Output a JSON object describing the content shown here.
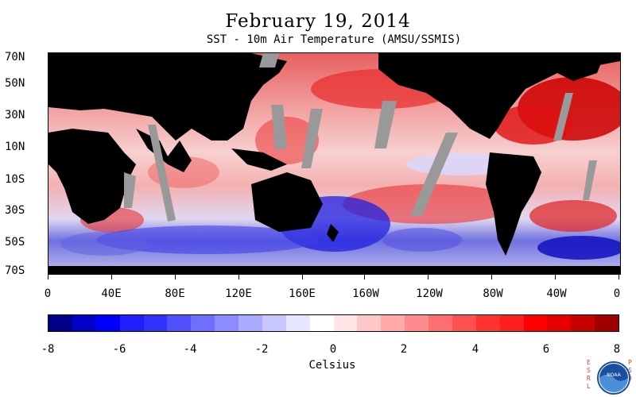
{
  "title": "February 19, 2014",
  "subtitle": "SST - 10m Air Temperature (AMSU/SSMIS)",
  "latitude_labels": [
    "70N",
    "50N",
    "30N",
    "10N",
    "10S",
    "30S",
    "50S",
    "70S"
  ],
  "longitude_labels": [
    "0",
    "40E",
    "80E",
    "120E",
    "160E",
    "160W",
    "120W",
    "80W",
    "40W",
    "0"
  ],
  "colorbar": {
    "labels": [
      "-8",
      "-6",
      "-4",
      "-2",
      "0",
      "2",
      "4",
      "6",
      "8"
    ],
    "title": "Celsius",
    "colors": [
      "#00008b",
      "#0000c8",
      "#0000ff",
      "#1e1eff",
      "#3232ff",
      "#5050ff",
      "#6e6eff",
      "#8c8cff",
      "#aaaaff",
      "#c8c8ff",
      "#e6e6ff",
      "#ffffff",
      "#ffe6e6",
      "#ffc8c8",
      "#ffaaaa",
      "#ff8c8c",
      "#ff6e6e",
      "#ff5050",
      "#ff3232",
      "#ff1e1e",
      "#ff0000",
      "#e60000",
      "#c80000",
      "#a00000"
    ]
  },
  "logo": {
    "left_letters": "ESRL",
    "right_letters": "PSD"
  }
}
